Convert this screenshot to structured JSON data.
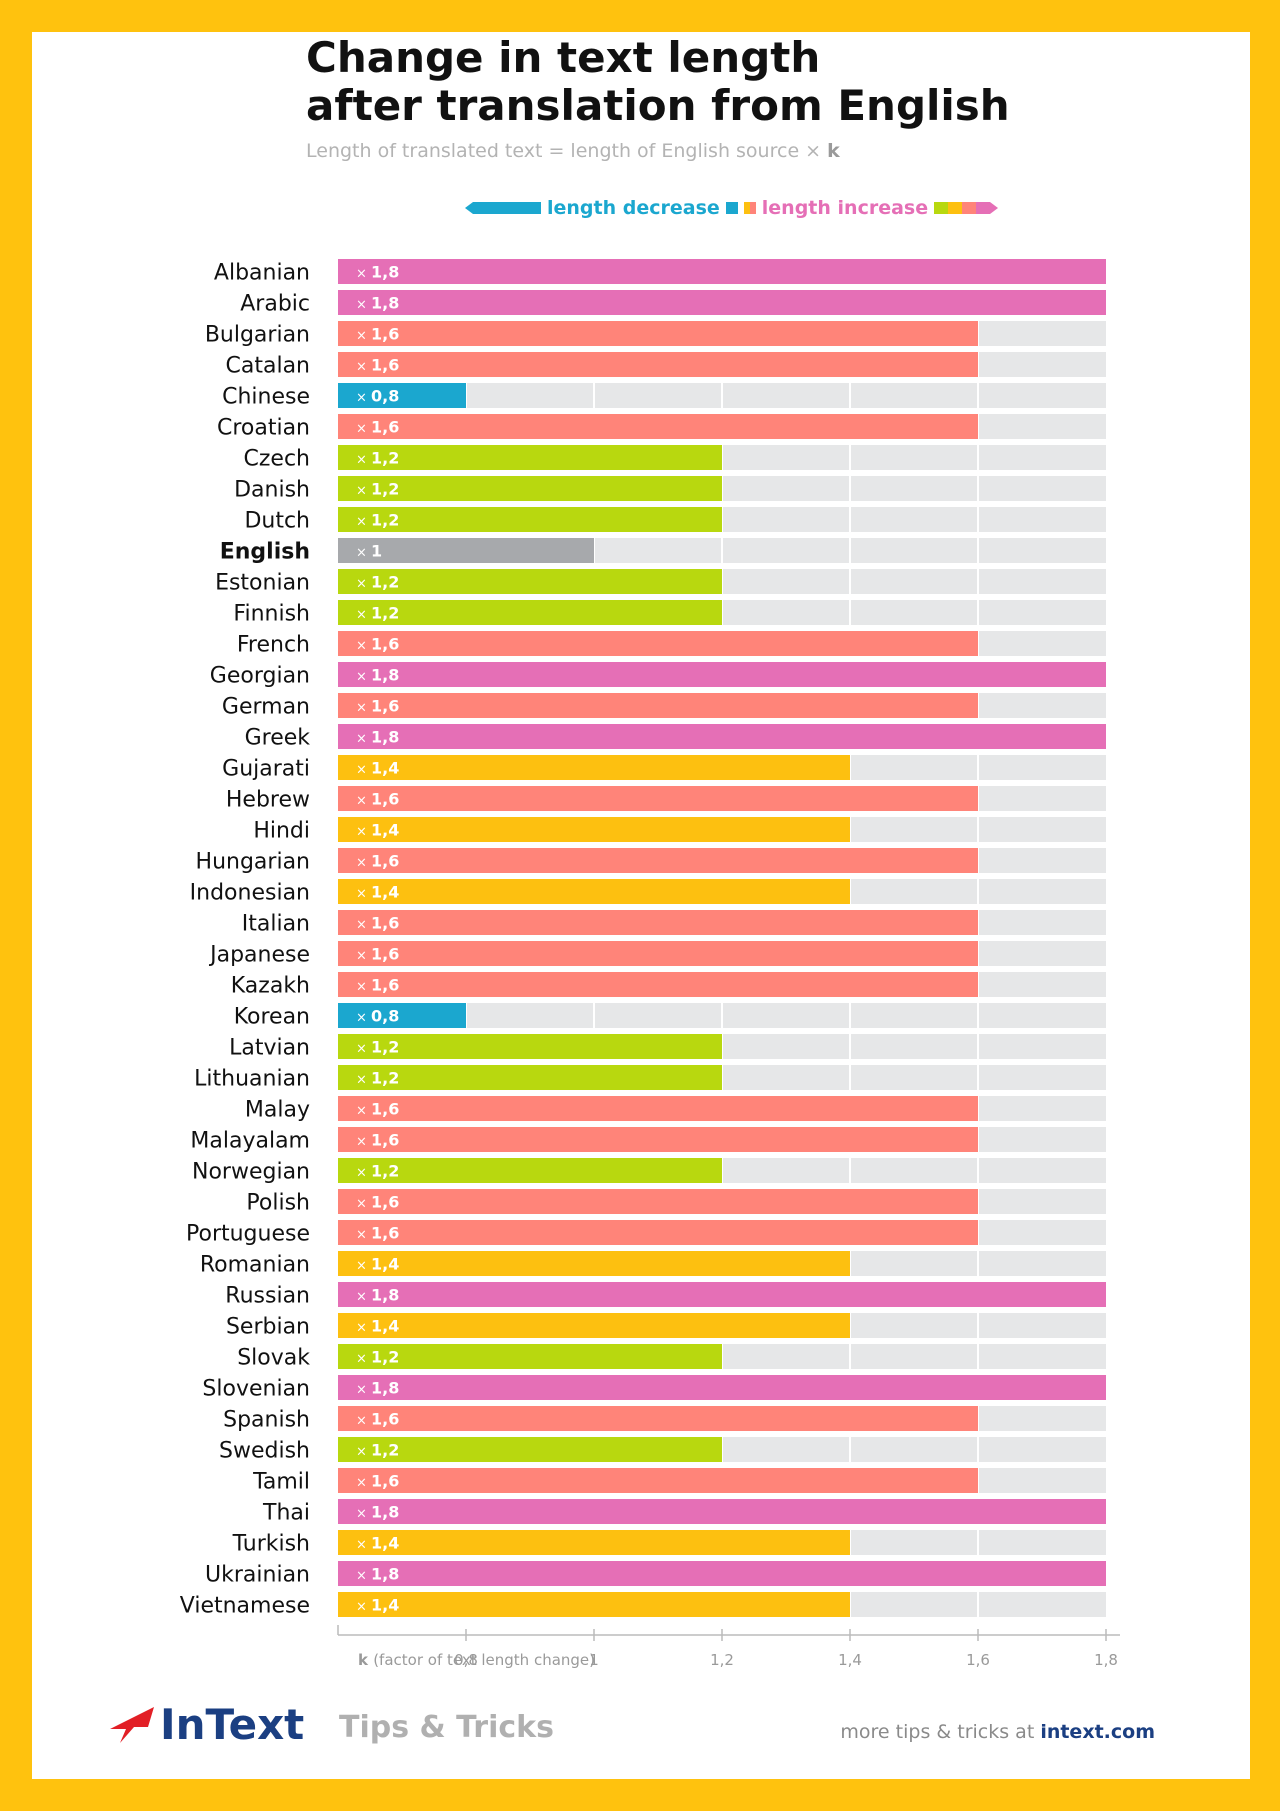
{
  "header": {
    "title_line1": "Change in text length",
    "title_line2": "after translation from English",
    "subtitle_prefix": "Length of translated text = length of English source × ",
    "subtitle_k": "k"
  },
  "legend": {
    "decrease_label": "length decrease",
    "increase_label": "length increase"
  },
  "colors": {
    "0.8": "#1BA7CF",
    "1": "#A7A9AC",
    "1.2": "#B8D80F",
    "1.4": "#FDC010",
    "1.6": "#FF8479",
    "1.8": "#E56FB6",
    "track": "#E6E7E8",
    "gridline": "#ffffff"
  },
  "chart_data": {
    "type": "bar",
    "orientation": "horizontal",
    "xlabel": "k",
    "xlabel_note": "(factor of text length change)",
    "xlim": [
      0.6,
      1.8
    ],
    "xticks": [
      0.8,
      1,
      1.2,
      1.4,
      1.6,
      1.8
    ],
    "xtick_labels": [
      "0,8",
      "1",
      "1,2",
      "1,4",
      "1,6",
      "1,8"
    ],
    "grid": true,
    "legend_position": "top",
    "categories": [
      "Albanian",
      "Arabic",
      "Bulgarian",
      "Catalan",
      "Chinese",
      "Croatian",
      "Czech",
      "Danish",
      "Dutch",
      "English",
      "Estonian",
      "Finnish",
      "French",
      "Georgian",
      "German",
      "Greek",
      "Gujarati",
      "Hebrew",
      "Hindi",
      "Hungarian",
      "Indonesian",
      "Italian",
      "Japanese",
      "Kazakh",
      "Korean",
      "Latvian",
      "Lithuanian",
      "Malay",
      "Malayalam",
      "Norwegian",
      "Polish",
      "Portuguese",
      "Romanian",
      "Russian",
      "Serbian",
      "Slovak",
      "Slovenian",
      "Spanish",
      "Swedish",
      "Tamil",
      "Thai",
      "Turkish",
      "Ukrainian",
      "Vietnamese"
    ],
    "values": [
      1.8,
      1.8,
      1.6,
      1.6,
      0.8,
      1.6,
      1.2,
      1.2,
      1.2,
      1,
      1.2,
      1.2,
      1.6,
      1.8,
      1.6,
      1.8,
      1.4,
      1.6,
      1.4,
      1.6,
      1.4,
      1.6,
      1.6,
      1.6,
      0.8,
      1.2,
      1.2,
      1.6,
      1.6,
      1.2,
      1.6,
      1.6,
      1.4,
      1.8,
      1.4,
      1.2,
      1.8,
      1.6,
      1.2,
      1.6,
      1.8,
      1.4,
      1.8,
      1.4
    ],
    "value_labels": [
      "1,8",
      "1,8",
      "1,6",
      "1,6",
      "0,8",
      "1,6",
      "1,2",
      "1,2",
      "1,2",
      "1",
      "1,2",
      "1,2",
      "1,6",
      "1,8",
      "1,6",
      "1,8",
      "1,4",
      "1,6",
      "1,4",
      "1,6",
      "1,4",
      "1,6",
      "1,6",
      "1,6",
      "0,8",
      "1,2",
      "1,2",
      "1,6",
      "1,6",
      "1,2",
      "1,6",
      "1,6",
      "1,4",
      "1,8",
      "1,4",
      "1,2",
      "1,8",
      "1,6",
      "1,2",
      "1,6",
      "1,8",
      "1,4",
      "1,8",
      "1,4"
    ],
    "value_prefix": "×",
    "highlight_category": "English"
  },
  "footer": {
    "logo_text": "InText",
    "tagline": "Tips & Tricks",
    "more_prefix": "more tips & tricks at ",
    "site": "intext.com"
  }
}
